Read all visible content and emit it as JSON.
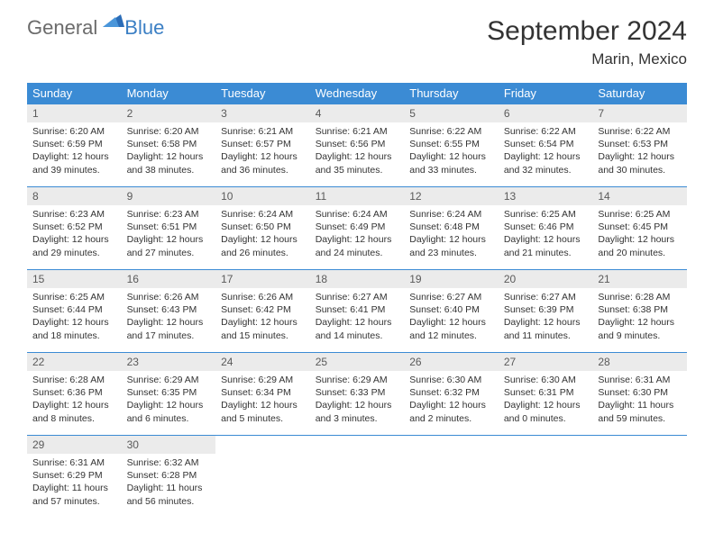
{
  "logo": {
    "general": "General",
    "blue": "Blue"
  },
  "title": "September 2024",
  "location": "Marin, Mexico",
  "colors": {
    "header_bg": "#3b8bd4",
    "header_text": "#ffffff",
    "daynum_bg": "#ebebeb",
    "daynum_text": "#5a5a5a",
    "border": "#3b8bd4",
    "body_text": "#333333",
    "logo_gray": "#6b6b6b",
    "logo_blue": "#3b7fc4"
  },
  "weekdays": [
    "Sunday",
    "Monday",
    "Tuesday",
    "Wednesday",
    "Thursday",
    "Friday",
    "Saturday"
  ],
  "days": [
    {
      "n": "1",
      "sr": "6:20 AM",
      "ss": "6:59 PM",
      "dl": "12 hours and 39 minutes."
    },
    {
      "n": "2",
      "sr": "6:20 AM",
      "ss": "6:58 PM",
      "dl": "12 hours and 38 minutes."
    },
    {
      "n": "3",
      "sr": "6:21 AM",
      "ss": "6:57 PM",
      "dl": "12 hours and 36 minutes."
    },
    {
      "n": "4",
      "sr": "6:21 AM",
      "ss": "6:56 PM",
      "dl": "12 hours and 35 minutes."
    },
    {
      "n": "5",
      "sr": "6:22 AM",
      "ss": "6:55 PM",
      "dl": "12 hours and 33 minutes."
    },
    {
      "n": "6",
      "sr": "6:22 AM",
      "ss": "6:54 PM",
      "dl": "12 hours and 32 minutes."
    },
    {
      "n": "7",
      "sr": "6:22 AM",
      "ss": "6:53 PM",
      "dl": "12 hours and 30 minutes."
    },
    {
      "n": "8",
      "sr": "6:23 AM",
      "ss": "6:52 PM",
      "dl": "12 hours and 29 minutes."
    },
    {
      "n": "9",
      "sr": "6:23 AM",
      "ss": "6:51 PM",
      "dl": "12 hours and 27 minutes."
    },
    {
      "n": "10",
      "sr": "6:24 AM",
      "ss": "6:50 PM",
      "dl": "12 hours and 26 minutes."
    },
    {
      "n": "11",
      "sr": "6:24 AM",
      "ss": "6:49 PM",
      "dl": "12 hours and 24 minutes."
    },
    {
      "n": "12",
      "sr": "6:24 AM",
      "ss": "6:48 PM",
      "dl": "12 hours and 23 minutes."
    },
    {
      "n": "13",
      "sr": "6:25 AM",
      "ss": "6:46 PM",
      "dl": "12 hours and 21 minutes."
    },
    {
      "n": "14",
      "sr": "6:25 AM",
      "ss": "6:45 PM",
      "dl": "12 hours and 20 minutes."
    },
    {
      "n": "15",
      "sr": "6:25 AM",
      "ss": "6:44 PM",
      "dl": "12 hours and 18 minutes."
    },
    {
      "n": "16",
      "sr": "6:26 AM",
      "ss": "6:43 PM",
      "dl": "12 hours and 17 minutes."
    },
    {
      "n": "17",
      "sr": "6:26 AM",
      "ss": "6:42 PM",
      "dl": "12 hours and 15 minutes."
    },
    {
      "n": "18",
      "sr": "6:27 AM",
      "ss": "6:41 PM",
      "dl": "12 hours and 14 minutes."
    },
    {
      "n": "19",
      "sr": "6:27 AM",
      "ss": "6:40 PM",
      "dl": "12 hours and 12 minutes."
    },
    {
      "n": "20",
      "sr": "6:27 AM",
      "ss": "6:39 PM",
      "dl": "12 hours and 11 minutes."
    },
    {
      "n": "21",
      "sr": "6:28 AM",
      "ss": "6:38 PM",
      "dl": "12 hours and 9 minutes."
    },
    {
      "n": "22",
      "sr": "6:28 AM",
      "ss": "6:36 PM",
      "dl": "12 hours and 8 minutes."
    },
    {
      "n": "23",
      "sr": "6:29 AM",
      "ss": "6:35 PM",
      "dl": "12 hours and 6 minutes."
    },
    {
      "n": "24",
      "sr": "6:29 AM",
      "ss": "6:34 PM",
      "dl": "12 hours and 5 minutes."
    },
    {
      "n": "25",
      "sr": "6:29 AM",
      "ss": "6:33 PM",
      "dl": "12 hours and 3 minutes."
    },
    {
      "n": "26",
      "sr": "6:30 AM",
      "ss": "6:32 PM",
      "dl": "12 hours and 2 minutes."
    },
    {
      "n": "27",
      "sr": "6:30 AM",
      "ss": "6:31 PM",
      "dl": "12 hours and 0 minutes."
    },
    {
      "n": "28",
      "sr": "6:31 AM",
      "ss": "6:30 PM",
      "dl": "11 hours and 59 minutes."
    },
    {
      "n": "29",
      "sr": "6:31 AM",
      "ss": "6:29 PM",
      "dl": "11 hours and 57 minutes."
    },
    {
      "n": "30",
      "sr": "6:32 AM",
      "ss": "6:28 PM",
      "dl": "11 hours and 56 minutes."
    }
  ],
  "labels": {
    "sunrise": "Sunrise:",
    "sunset": "Sunset:",
    "daylight": "Daylight:"
  }
}
